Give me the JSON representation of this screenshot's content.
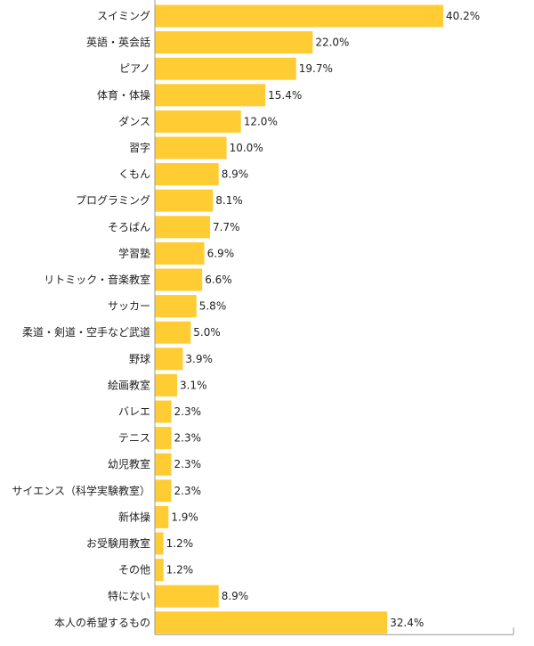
{
  "chart_data": {
    "type": "bar",
    "orientation": "horizontal",
    "categories": [
      "スイミング",
      "英語・英会話",
      "ピアノ",
      "体育・体操",
      "ダンス",
      "習字",
      "くもん",
      "プログラミング",
      "そろばん",
      "学習塾",
      "リトミック・音楽教室",
      "サッカー",
      "柔道・剣道・空手など武道",
      "野球",
      "絵画教室",
      "バレエ",
      "テニス",
      "幼児教室",
      "サイエンス（科学実験教室）",
      "新体操",
      "お受験用教室",
      "その他",
      "特にない",
      "本人の希望するもの"
    ],
    "values": [
      40.2,
      22.0,
      19.7,
      15.4,
      12.0,
      10.0,
      8.9,
      8.1,
      7.7,
      6.9,
      6.6,
      5.8,
      5.0,
      3.9,
      3.1,
      2.3,
      2.3,
      2.3,
      2.3,
      1.9,
      1.2,
      1.2,
      8.9,
      32.4
    ],
    "value_labels": [
      "40.2%",
      "22.0%",
      "19.7%",
      "15.4%",
      "12.0%",
      "10.0%",
      "8.9%",
      "8.1%",
      "7.7%",
      "6.9%",
      "6.6%",
      "5.8%",
      "5.0%",
      "3.9%",
      "3.1%",
      "2.3%",
      "2.3%",
      "2.3%",
      "2.3%",
      "1.9%",
      "1.2%",
      "1.2%",
      "8.9%",
      "32.4%"
    ],
    "unit": "%",
    "xlim": [
      0,
      50
    ],
    "grid": false,
    "legend": "none",
    "colors": {
      "bar": "#ffcc33",
      "axis": "#999999"
    }
  }
}
